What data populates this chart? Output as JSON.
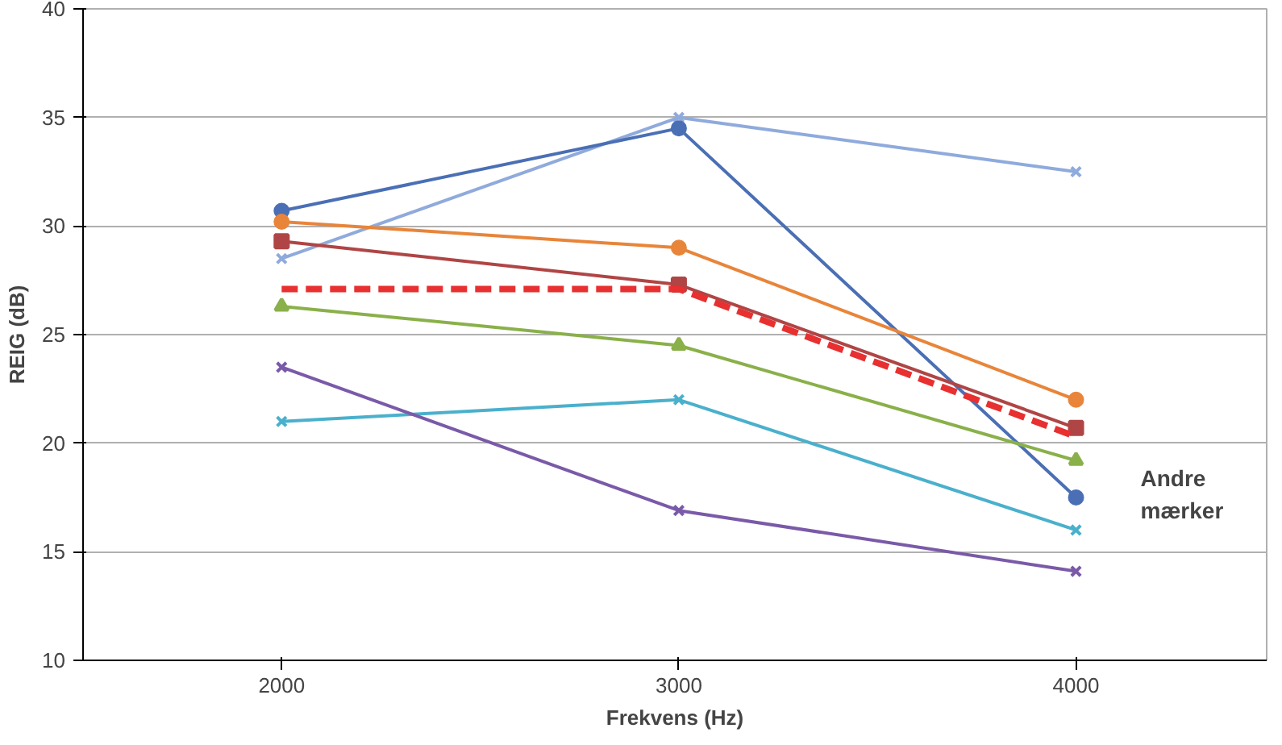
{
  "chart_data": {
    "type": "line",
    "xlabel": "Frekvens (Hz)",
    "ylabel": "REIG (dB)",
    "x": [
      2000,
      3000,
      4000
    ],
    "xlim": [
      1500,
      4480
    ],
    "xticks": [
      2000,
      3000,
      4000
    ],
    "ylim": [
      10,
      40
    ],
    "yticks": [
      10,
      15,
      20,
      25,
      30,
      35,
      40
    ],
    "grid": "y",
    "series": [
      {
        "color": "#8faadc",
        "values": [
          28.5,
          35.0,
          32.5
        ],
        "marker": "cross"
      },
      {
        "color": "#4a6fb5",
        "values": [
          30.7,
          34.5,
          17.5
        ],
        "marker": "circle"
      },
      {
        "color": "#e8853a",
        "values": [
          30.2,
          29.0,
          22.0
        ],
        "marker": "circle"
      },
      {
        "color": "#b04545",
        "values": [
          29.3,
          27.3,
          20.7
        ],
        "marker": "square"
      },
      {
        "color": "#e83030",
        "values": [
          27.1,
          27.1,
          20.3
        ],
        "marker": "none",
        "line_style": "dashed"
      },
      {
        "color": "#8ab04a",
        "values": [
          26.3,
          24.5,
          19.2
        ],
        "marker": "triangle"
      },
      {
        "color": "#4ab0cc",
        "values": [
          21.0,
          22.0,
          16.0
        ],
        "marker": "cross"
      },
      {
        "color": "#7a5aa8",
        "values": [
          23.5,
          16.9,
          14.1
        ],
        "marker": "cross"
      }
    ],
    "annotations": [
      {
        "text": "Andre mærker",
        "x": 4000,
        "y": 17.5
      }
    ]
  }
}
